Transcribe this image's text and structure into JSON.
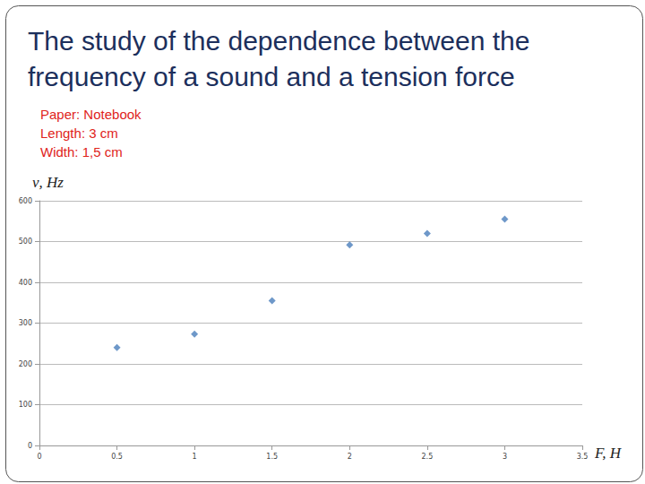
{
  "chart_data": {
    "type": "scatter",
    "title": "The study of the dependence between the frequency of a sound and a tension force",
    "annotations": [
      "Paper: Notebook",
      "Length: 3 cm",
      "Width: 1,5 cm"
    ],
    "x_label": "F, H",
    "y_label": "ν, Hz",
    "x": [
      0.5,
      1,
      1.5,
      2,
      2.5,
      3
    ],
    "values": [
      240,
      273,
      355,
      492,
      520,
      555
    ],
    "color": "#4a7ebb",
    "marker": "diamond",
    "xlim": [
      0,
      3.5
    ],
    "xticks": [
      0,
      0.5,
      1,
      1.5,
      2,
      2.5,
      3,
      3.5
    ],
    "ylim": [
      0,
      600
    ],
    "yticks": [
      0,
      100,
      200,
      300,
      400,
      500,
      600
    ],
    "grid": true
  }
}
